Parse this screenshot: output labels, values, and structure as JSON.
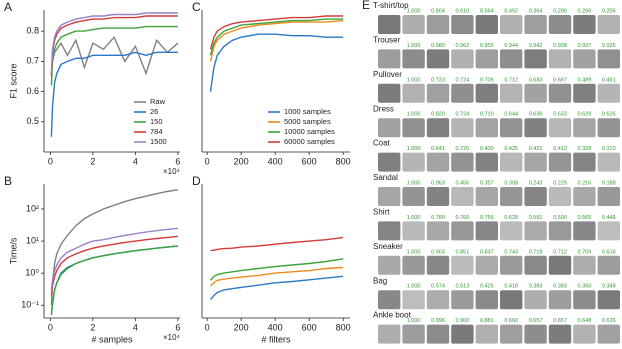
{
  "chart_data": [
    {
      "type": "line",
      "panel_label": "A",
      "y_label": "F1 score",
      "x_multiplier": "×10⁴",
      "x": [
        500,
        1000,
        2000,
        3000,
        5000,
        8000,
        12000,
        16000,
        20000,
        25000,
        30000,
        35000,
        40000,
        45000,
        50000,
        55000,
        60000
      ],
      "xlim": [
        -3000,
        61000
      ],
      "xticks": [
        0,
        {
          "value": 20000,
          "label": "2"
        },
        {
          "value": 40000,
          "label": "4"
        },
        {
          "value": 60000,
          "label": "6"
        }
      ],
      "ylim": [
        0.4,
        0.87
      ],
      "yticks": [
        0.5,
        0.6,
        0.7,
        0.8
      ],
      "legend": "lower-right",
      "series": [
        {
          "name": "Raw",
          "color": "#808080",
          "values": [
            0.66,
            0.7,
            0.73,
            0.74,
            0.76,
            0.72,
            0.77,
            0.68,
            0.76,
            0.74,
            0.78,
            0.7,
            0.75,
            0.66,
            0.77,
            0.73,
            0.76
          ]
        },
        {
          "name": "26",
          "color": "#2a78c8",
          "values": [
            0.45,
            0.55,
            0.63,
            0.66,
            0.69,
            0.7,
            0.71,
            0.71,
            0.72,
            0.72,
            0.72,
            0.72,
            0.73,
            0.72,
            0.73,
            0.73,
            0.73
          ]
        },
        {
          "name": "150",
          "color": "#3ba53b",
          "values": [
            0.62,
            0.7,
            0.74,
            0.76,
            0.78,
            0.79,
            0.8,
            0.8,
            0.805,
            0.81,
            0.81,
            0.81,
            0.81,
            0.815,
            0.815,
            0.815,
            0.815
          ]
        },
        {
          "name": "784",
          "color": "#d43a3a",
          "values": [
            0.65,
            0.73,
            0.77,
            0.79,
            0.81,
            0.82,
            0.83,
            0.835,
            0.84,
            0.84,
            0.845,
            0.845,
            0.845,
            0.85,
            0.85,
            0.85,
            0.85
          ]
        },
        {
          "name": "1500",
          "color": "#9a80c8",
          "values": [
            0.66,
            0.74,
            0.78,
            0.8,
            0.82,
            0.83,
            0.84,
            0.845,
            0.85,
            0.85,
            0.855,
            0.855,
            0.855,
            0.86,
            0.86,
            0.86,
            0.86
          ]
        }
      ]
    },
    {
      "type": "line",
      "panel_label": "B",
      "y_label": "Time/s",
      "x_label": "# samples",
      "x_multiplier": "×10⁴",
      "log_y": true,
      "x": [
        500,
        1000,
        2000,
        3000,
        5000,
        8000,
        12000,
        16000,
        20000,
        25000,
        30000,
        35000,
        40000,
        45000,
        50000,
        55000,
        60000
      ],
      "xlim": [
        -3000,
        61000
      ],
      "xticks": [
        0,
        {
          "value": 20000,
          "label": "2"
        },
        {
          "value": 40000,
          "label": "4"
        },
        {
          "value": 60000,
          "label": "6"
        }
      ],
      "ylim": [
        0.04,
        600
      ],
      "yticks": [
        {
          "value": 0.1,
          "label": "10⁻¹"
        },
        {
          "value": 1,
          "label": "10⁰"
        },
        {
          "value": 10,
          "label": "10¹"
        },
        {
          "value": 100,
          "label": "10²"
        }
      ],
      "series": [
        {
          "color": "#808080",
          "values": [
            0.1,
            0.5,
            2,
            4,
            8,
            15,
            30,
            50,
            70,
            100,
            130,
            170,
            210,
            250,
            300,
            350,
            400
          ]
        },
        {
          "color": "#2a78c8",
          "values": [
            0.05,
            0.1,
            0.3,
            0.5,
            1,
            1.5,
            2,
            2.5,
            3,
            3.5,
            4,
            4.5,
            5,
            5.5,
            6,
            6.5,
            7
          ]
        },
        {
          "color": "#3ba53b",
          "values": [
            0.05,
            0.12,
            0.3,
            0.5,
            0.9,
            1.4,
            2,
            2.5,
            3,
            3.5,
            4,
            4.5,
            5,
            5.5,
            6,
            6.5,
            7
          ]
        },
        {
          "color": "#d43a3a",
          "values": [
            0.2,
            0.4,
            0.8,
            1.2,
            2,
            3,
            4,
            5,
            6,
            7,
            8,
            9,
            10,
            11,
            12,
            13,
            14
          ]
        },
        {
          "color": "#9a80c8",
          "values": [
            0.3,
            0.6,
            1.2,
            1.8,
            3,
            4.5,
            6,
            8,
            10,
            11,
            13,
            15,
            17,
            19,
            21,
            23,
            25
          ]
        }
      ]
    },
    {
      "type": "line",
      "panel_label": "C",
      "x": [
        20,
        40,
        60,
        100,
        150,
        200,
        300,
        400,
        500,
        600,
        700,
        800
      ],
      "xlim": [
        -30,
        840
      ],
      "xticks": [
        0,
        200,
        400,
        600,
        800
      ],
      "ylim": [
        0.4,
        0.87
      ],
      "legend": "lower-right",
      "series": [
        {
          "name": "1000 samples",
          "color": "#2a78c8",
          "values": [
            0.6,
            0.68,
            0.72,
            0.75,
            0.77,
            0.78,
            0.79,
            0.79,
            0.785,
            0.785,
            0.78,
            0.78
          ]
        },
        {
          "name": "5000 samples",
          "color": "#f08a1c",
          "values": [
            0.7,
            0.75,
            0.77,
            0.79,
            0.8,
            0.81,
            0.82,
            0.825,
            0.83,
            0.83,
            0.83,
            0.835
          ]
        },
        {
          "name": "10000 samples",
          "color": "#3ba53b",
          "values": [
            0.72,
            0.76,
            0.78,
            0.8,
            0.81,
            0.82,
            0.825,
            0.83,
            0.835,
            0.835,
            0.84,
            0.84
          ]
        },
        {
          "name": "60000 samples",
          "color": "#d43a3a",
          "values": [
            0.74,
            0.78,
            0.8,
            0.815,
            0.825,
            0.83,
            0.835,
            0.84,
            0.845,
            0.845,
            0.85,
            0.85
          ]
        }
      ]
    },
    {
      "type": "line",
      "panel_label": "D",
      "x_label": "# filters",
      "log_y": true,
      "x": [
        20,
        40,
        60,
        100,
        150,
        200,
        300,
        400,
        500,
        600,
        700,
        800
      ],
      "xlim": [
        -30,
        840
      ],
      "xticks": [
        0,
        200,
        400,
        600,
        800
      ],
      "ylim": [
        0.04,
        600
      ],
      "series": [
        {
          "color": "#2a78c8",
          "values": [
            0.15,
            0.2,
            0.25,
            0.3,
            0.33,
            0.36,
            0.42,
            0.5,
            0.55,
            0.62,
            0.7,
            0.8
          ]
        },
        {
          "color": "#f08a1c",
          "values": [
            0.4,
            0.5,
            0.6,
            0.65,
            0.7,
            0.75,
            0.85,
            1,
            1.1,
            1.2,
            1.4,
            1.5
          ]
        },
        {
          "color": "#3ba53b",
          "values": [
            0.6,
            0.8,
            0.9,
            1,
            1.1,
            1.2,
            1.4,
            1.6,
            1.8,
            2,
            2.3,
            2.8
          ]
        },
        {
          "color": "#d43a3a",
          "values": [
            5,
            5.2,
            5.5,
            5.8,
            6,
            6.5,
            7,
            8,
            9,
            10,
            11,
            13
          ]
        }
      ]
    }
  ],
  "panel_e": {
    "panel_label": "E",
    "rows": [
      {
        "label": "T-shirt/top",
        "scores": [
          "1.000",
          "0.804",
          "0.610",
          "0.564",
          "0.452",
          "0.364",
          "0.290",
          "0.206",
          "0.206"
        ]
      },
      {
        "label": "Trouser",
        "scores": [
          "1.000",
          "0.980",
          "0.962",
          "0.955",
          "0.944",
          "0.942",
          "0.938",
          "0.937",
          "0.935"
        ]
      },
      {
        "label": "Pullover",
        "scores": [
          "1.000",
          "0.723",
          "0.724",
          "0.705",
          "0.712",
          "0.683",
          "0.667",
          "0.489",
          "0.461"
        ]
      },
      {
        "label": "Dress",
        "scores": [
          "1.000",
          "0.820",
          "0.724",
          "0.710",
          "0.644",
          "0.636",
          "0.633",
          "0.629",
          "0.626"
        ]
      },
      {
        "label": "Coat",
        "scores": [
          "1.000",
          "0.641",
          "0.720",
          "0.400",
          "0.425",
          "0.421",
          "0.413",
          "0.328",
          "0.310"
        ]
      },
      {
        "label": "Sandal",
        "scores": [
          "1.000",
          "0.963",
          "0.456",
          "0.357",
          "0.308",
          "0.243",
          "0.225",
          "0.216",
          "0.188"
        ]
      },
      {
        "label": "Shirt",
        "scores": [
          "1.000",
          "0.780",
          "0.766",
          "0.756",
          "0.628",
          "0.591",
          "0.590",
          "0.565",
          "0.448"
        ]
      },
      {
        "label": "Sneaker",
        "scores": [
          "1.000",
          "0.903",
          "0.851",
          "0.837",
          "0.743",
          "0.718",
          "0.712",
          "0.709",
          "0.616"
        ]
      },
      {
        "label": "Bag",
        "scores": [
          "1.000",
          "0.574",
          "0.513",
          "0.425",
          "0.418",
          "0.383",
          "0.383",
          "0.350",
          "0.348"
        ]
      },
      {
        "label": "Ankle boot",
        "scores": [
          "1.000",
          "0.996",
          "0.900",
          "0.881",
          "0.660",
          "0.657",
          "0.657",
          "0.648",
          "0.636"
        ]
      }
    ]
  }
}
